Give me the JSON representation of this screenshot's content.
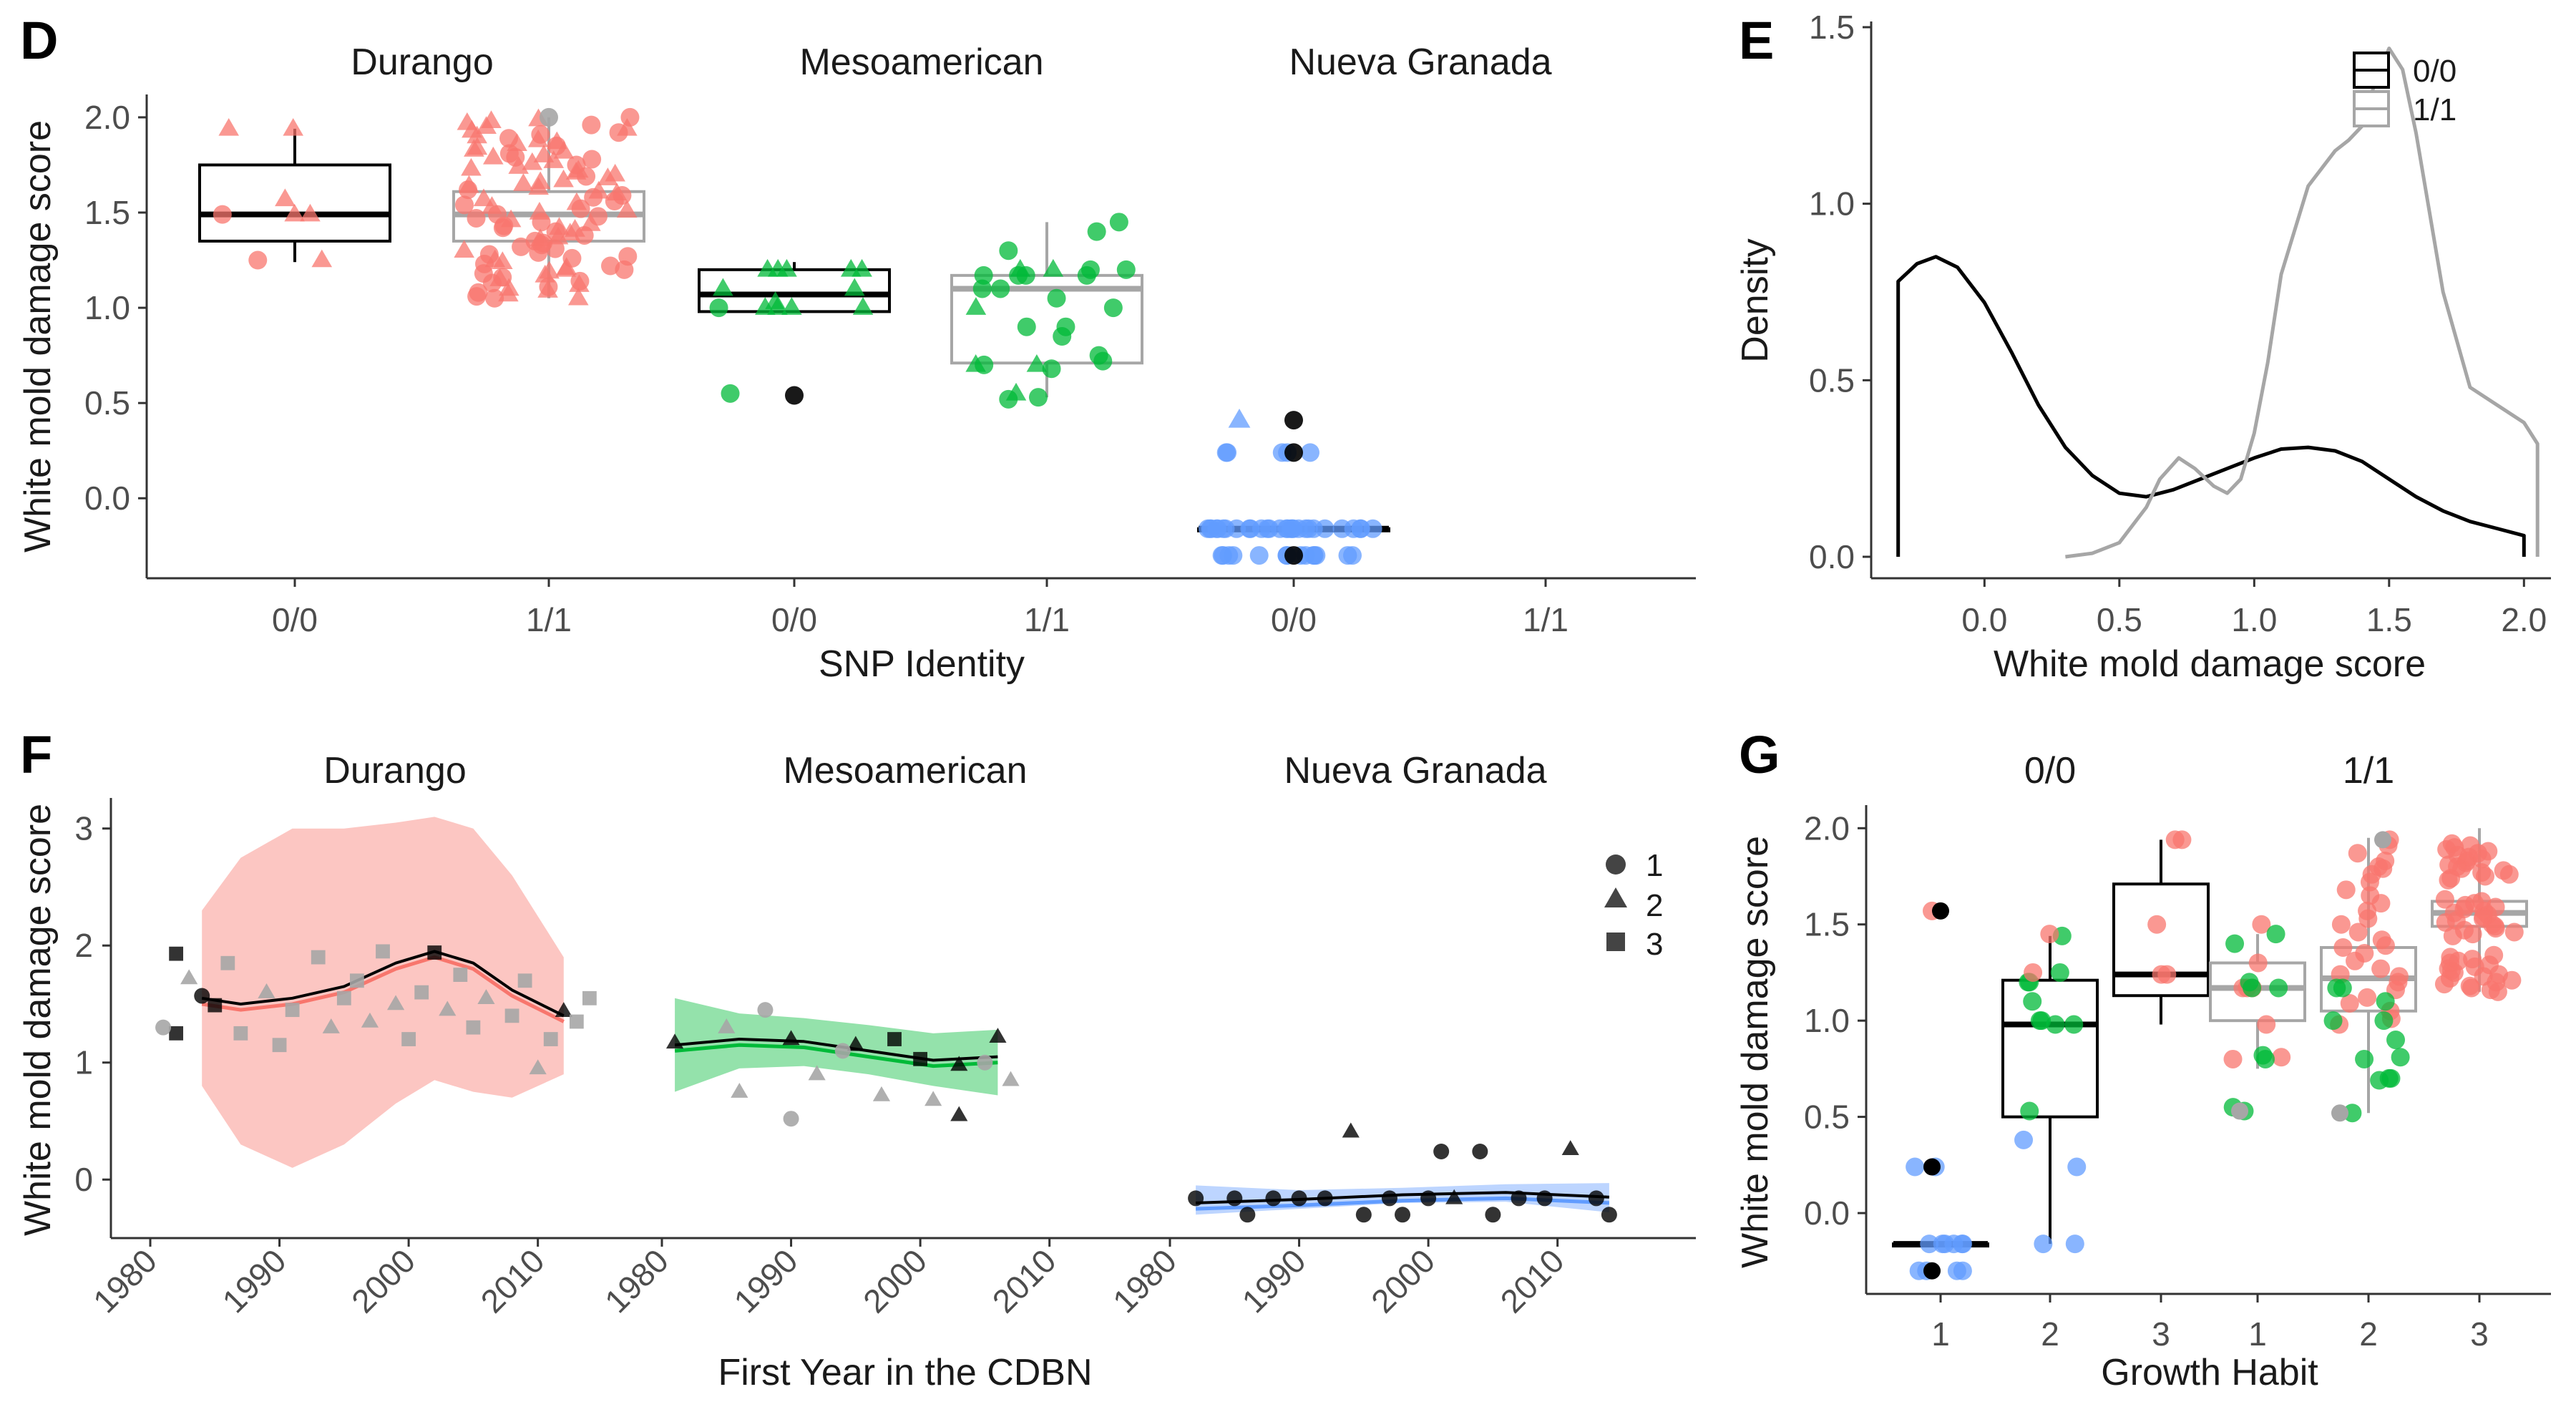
{
  "colors": {
    "Durango": "#F8766D",
    "Mesoamerican": "#00BA38",
    "Nueva Granada": "#619CFF",
    "genotype_00": "#000000",
    "genotype_11": "#A6A6A6"
  },
  "chart_data": [
    {
      "panel": "D",
      "type": "box",
      "xlabel": "SNP Identity",
      "ylabel": "White mold damage score",
      "ylim": [
        -0.42,
        2.12
      ],
      "yticks": [
        "0.0",
        "0.5",
        "1.0",
        "1.5",
        "2.0"
      ],
      "facets": [
        "Durango",
        "Mesoamerican",
        "Nueva Granada"
      ],
      "categories": [
        "0/0",
        "1/1"
      ],
      "boxes": [
        {
          "facet": "Durango",
          "genotype": "0/0",
          "min": 1.24,
          "q1": 1.35,
          "median": 1.49,
          "q3": 1.75,
          "max": 1.94
        },
        {
          "facet": "Durango",
          "genotype": "1/1",
          "min": 1.05,
          "q1": 1.35,
          "median": 1.49,
          "q3": 1.61,
          "max": 2.0
        },
        {
          "facet": "Mesoamerican",
          "genotype": "0/0",
          "min": 0.98,
          "q1": 0.98,
          "median": 1.07,
          "q3": 1.2,
          "max": 1.24
        },
        {
          "facet": "Mesoamerican",
          "genotype": "1/1",
          "min": 0.53,
          "q1": 0.71,
          "median": 1.1,
          "q3": 1.17,
          "max": 1.45
        },
        {
          "facet": "Nueva Granada",
          "genotype": "0/0",
          "min": -0.16,
          "q1": -0.16,
          "median": -0.16,
          "q3": -0.16,
          "max": -0.16
        }
      ]
    },
    {
      "panel": "E",
      "type": "line",
      "xlabel": "White mold damage score",
      "ylabel": "Density",
      "xlim": [
        -0.42,
        2.1
      ],
      "ylim": [
        0,
        1.5
      ],
      "xticks": [
        "0.0",
        "0.5",
        "1.0",
        "1.5",
        "2.0"
      ],
      "yticks": [
        "0.0",
        "0.5",
        "1.0",
        "1.5"
      ],
      "legend": [
        "0/0",
        "1/1"
      ],
      "series": [
        {
          "name": "0/0",
          "x": [
            -0.32,
            -0.32,
            -0.25,
            -0.18,
            -0.1,
            0.0,
            0.1,
            0.2,
            0.3,
            0.4,
            0.5,
            0.6,
            0.7,
            0.8,
            0.9,
            1.0,
            1.1,
            1.2,
            1.3,
            1.4,
            1.5,
            1.6,
            1.7,
            1.8,
            1.9,
            2.0,
            2.0
          ],
          "y": [
            0.0,
            0.78,
            0.83,
            0.85,
            0.82,
            0.72,
            0.58,
            0.43,
            0.31,
            0.23,
            0.18,
            0.17,
            0.19,
            0.22,
            0.25,
            0.28,
            0.305,
            0.31,
            0.3,
            0.27,
            0.22,
            0.17,
            0.13,
            0.1,
            0.08,
            0.06,
            0.0
          ]
        },
        {
          "name": "1/1",
          "x": [
            0.3,
            0.4,
            0.5,
            0.6,
            0.65,
            0.72,
            0.78,
            0.85,
            0.9,
            0.95,
            1.0,
            1.05,
            1.1,
            1.2,
            1.3,
            1.35,
            1.4,
            1.45,
            1.5,
            1.55,
            1.6,
            1.7,
            1.8,
            1.9,
            2.0,
            2.05,
            2.05
          ],
          "y": [
            0.0,
            0.01,
            0.04,
            0.14,
            0.22,
            0.28,
            0.25,
            0.2,
            0.18,
            0.22,
            0.35,
            0.55,
            0.8,
            1.05,
            1.15,
            1.18,
            1.22,
            1.35,
            1.44,
            1.38,
            1.2,
            0.75,
            0.48,
            0.43,
            0.38,
            0.32,
            0.0
          ]
        }
      ]
    },
    {
      "panel": "F",
      "type": "scatter",
      "xlabel": "First Year in the CDBN",
      "ylabel": "White mold damage score",
      "xlim": [
        1978,
        2018
      ],
      "ylim": [
        -0.5,
        3.2
      ],
      "xticks": [
        "1980",
        "1990",
        "2000",
        "2010"
      ],
      "yticks": [
        "0",
        "1",
        "2",
        "3"
      ],
      "facets": [
        "Durango",
        "Mesoamerican",
        "Nueva Granada"
      ],
      "legend": [
        "1",
        "2",
        "3"
      ],
      "smooth": [
        {
          "facet": "Durango",
          "x": [
            1984,
            1987,
            1991,
            1995,
            1999,
            2002,
            2005,
            2008,
            2012
          ],
          "y": [
            1.55,
            1.5,
            1.55,
            1.65,
            1.85,
            1.95,
            1.85,
            1.62,
            1.4
          ],
          "band_upper": [
            2.3,
            2.75,
            3.0,
            3.0,
            3.05,
            3.1,
            3.0,
            2.6,
            1.9
          ],
          "band_lower": [
            0.8,
            0.3,
            0.1,
            0.3,
            0.65,
            0.85,
            0.75,
            0.7,
            0.9
          ]
        },
        {
          "facet": "Mesoamerican",
          "x": [
            1981,
            1986,
            1991,
            1996,
            2001,
            2006
          ],
          "y": [
            1.15,
            1.2,
            1.18,
            1.1,
            1.02,
            1.05
          ],
          "band_upper": [
            1.55,
            1.42,
            1.38,
            1.32,
            1.25,
            1.28
          ],
          "band_lower": [
            0.75,
            0.95,
            0.97,
            0.9,
            0.8,
            0.72
          ]
        },
        {
          "facet": "Nueva Granada",
          "x": [
            1982,
            1990,
            1998,
            2006,
            2014
          ],
          "y": [
            -0.2,
            -0.17,
            -0.13,
            -0.11,
            -0.15
          ],
          "band_upper": [
            -0.05,
            -0.09,
            -0.07,
            -0.04,
            -0.03
          ],
          "band_lower": [
            -0.3,
            -0.25,
            -0.2,
            -0.19,
            -0.28
          ]
        }
      ],
      "points": [
        {
          "facet": "Durango",
          "g": "0/0",
          "x": 1982,
          "y": 1.93,
          "s": 3
        },
        {
          "facet": "Durango",
          "g": "0/0",
          "x": 1982,
          "y": 1.25,
          "s": 3
        },
        {
          "facet": "Durango",
          "g": "0/0",
          "x": 1985,
          "y": 1.49,
          "s": 3
        },
        {
          "facet": "Durango",
          "g": "0/0",
          "x": 1984,
          "y": 1.57,
          "s": 1
        },
        {
          "facet": "Durango",
          "g": "0/0",
          "x": 2002,
          "y": 1.94,
          "s": 3
        },
        {
          "facet": "Durango",
          "g": "0/0",
          "x": 2012,
          "y": 1.44,
          "s": 2
        },
        {
          "facet": "Durango",
          "g": "1/1",
          "x": 1981,
          "y": 1.3,
          "s": 1
        },
        {
          "facet": "Durango",
          "g": "1/1",
          "x": 1983,
          "y": 1.72,
          "s": 2
        },
        {
          "facet": "Durango",
          "g": "1/1",
          "x": 1986,
          "y": 1.85,
          "s": 3
        },
        {
          "facet": "Durango",
          "g": "1/1",
          "x": 1987,
          "y": 1.25,
          "s": 3
        },
        {
          "facet": "Durango",
          "g": "1/1",
          "x": 1989,
          "y": 1.6,
          "s": 2
        },
        {
          "facet": "Durango",
          "g": "1/1",
          "x": 1990,
          "y": 1.15,
          "s": 3
        },
        {
          "facet": "Durango",
          "g": "1/1",
          "x": 1991,
          "y": 1.45,
          "s": 3
        },
        {
          "facet": "Durango",
          "g": "1/1",
          "x": 1993,
          "y": 1.9,
          "s": 3
        },
        {
          "facet": "Durango",
          "g": "1/1",
          "x": 1994,
          "y": 1.3,
          "s": 2
        },
        {
          "facet": "Durango",
          "g": "1/1",
          "x": 1995,
          "y": 1.55,
          "s": 3
        },
        {
          "facet": "Durango",
          "g": "1/1",
          "x": 1996,
          "y": 1.7,
          "s": 3
        },
        {
          "facet": "Durango",
          "g": "1/1",
          "x": 1997,
          "y": 1.35,
          "s": 2
        },
        {
          "facet": "Durango",
          "g": "1/1",
          "x": 1998,
          "y": 1.95,
          "s": 3
        },
        {
          "facet": "Durango",
          "g": "1/1",
          "x": 1999,
          "y": 1.5,
          "s": 2
        },
        {
          "facet": "Durango",
          "g": "1/1",
          "x": 2000,
          "y": 1.2,
          "s": 3
        },
        {
          "facet": "Durango",
          "g": "1/1",
          "x": 2001,
          "y": 1.6,
          "s": 3
        },
        {
          "facet": "Durango",
          "g": "1/1",
          "x": 2003,
          "y": 1.45,
          "s": 2
        },
        {
          "facet": "Durango",
          "g": "1/1",
          "x": 2004,
          "y": 1.75,
          "s": 3
        },
        {
          "facet": "Durango",
          "g": "1/1",
          "x": 2005,
          "y": 1.3,
          "s": 3
        },
        {
          "facet": "Durango",
          "g": "1/1",
          "x": 2006,
          "y": 1.55,
          "s": 2
        },
        {
          "facet": "Durango",
          "g": "1/1",
          "x": 2008,
          "y": 1.4,
          "s": 3
        },
        {
          "facet": "Durango",
          "g": "1/1",
          "x": 2009,
          "y": 1.7,
          "s": 3
        },
        {
          "facet": "Durango",
          "g": "1/1",
          "x": 2011,
          "y": 1.2,
          "s": 3
        },
        {
          "facet": "Durango",
          "g": "1/1",
          "x": 2013,
          "y": 1.35,
          "s": 3
        },
        {
          "facet": "Durango",
          "g": "1/1",
          "x": 2014,
          "y": 1.55,
          "s": 3
        },
        {
          "facet": "Durango",
          "g": "1/1",
          "x": 2010,
          "y": 0.95,
          "s": 2
        },
        {
          "facet": "Mesoamerican",
          "g": "0/0",
          "x": 1981,
          "y": 1.17,
          "s": 2
        },
        {
          "facet": "Mesoamerican",
          "g": "0/0",
          "x": 1990,
          "y": 1.2,
          "s": 2
        },
        {
          "facet": "Mesoamerican",
          "g": "0/0",
          "x": 1995,
          "y": 1.15,
          "s": 2
        },
        {
          "facet": "Mesoamerican",
          "g": "0/0",
          "x": 1998,
          "y": 1.2,
          "s": 3
        },
        {
          "facet": "Mesoamerican",
          "g": "0/0",
          "x": 2000,
          "y": 1.03,
          "s": 3
        },
        {
          "facet": "Mesoamerican",
          "g": "0/0",
          "x": 2003,
          "y": 0.98,
          "s": 2
        },
        {
          "facet": "Mesoamerican",
          "g": "0/0",
          "x": 2006,
          "y": 1.22,
          "s": 2
        },
        {
          "facet": "Mesoamerican",
          "g": "0/0",
          "x": 2003,
          "y": 0.55,
          "s": 2
        },
        {
          "facet": "Mesoamerican",
          "g": "1/1",
          "x": 1985,
          "y": 1.3,
          "s": 2
        },
        {
          "facet": "Mesoamerican",
          "g": "1/1",
          "x": 1988,
          "y": 1.45,
          "s": 1
        },
        {
          "facet": "Mesoamerican",
          "g": "1/1",
          "x": 1986,
          "y": 0.75,
          "s": 2
        },
        {
          "facet": "Mesoamerican",
          "g": "1/1",
          "x": 1990,
          "y": 0.52,
          "s": 1
        },
        {
          "facet": "Mesoamerican",
          "g": "1/1",
          "x": 1992,
          "y": 0.9,
          "s": 2
        },
        {
          "facet": "Mesoamerican",
          "g": "1/1",
          "x": 1994,
          "y": 1.1,
          "s": 1
        },
        {
          "facet": "Mesoamerican",
          "g": "1/1",
          "x": 1997,
          "y": 0.72,
          "s": 2
        },
        {
          "facet": "Mesoamerican",
          "g": "1/1",
          "x": 2001,
          "y": 0.68,
          "s": 2
        },
        {
          "facet": "Mesoamerican",
          "g": "1/1",
          "x": 2005,
          "y": 1.0,
          "s": 1
        },
        {
          "facet": "Mesoamerican",
          "g": "1/1",
          "x": 2007,
          "y": 0.85,
          "s": 2
        },
        {
          "facet": "Nueva Granada",
          "g": "0/0",
          "x": 1982,
          "y": -0.16,
          "s": 1
        },
        {
          "facet": "Nueva Granada",
          "g": "0/0",
          "x": 1985,
          "y": -0.16,
          "s": 1
        },
        {
          "facet": "Nueva Granada",
          "g": "0/0",
          "x": 1986,
          "y": -0.3,
          "s": 1
        },
        {
          "facet": "Nueva Granada",
          "g": "0/0",
          "x": 1988,
          "y": -0.16,
          "s": 1
        },
        {
          "facet": "Nueva Granada",
          "g": "0/0",
          "x": 1990,
          "y": -0.16,
          "s": 1
        },
        {
          "facet": "Nueva Granada",
          "g": "0/0",
          "x": 1992,
          "y": -0.16,
          "s": 1
        },
        {
          "facet": "Nueva Granada",
          "g": "0/0",
          "x": 1994,
          "y": 0.41,
          "s": 2
        },
        {
          "facet": "Nueva Granada",
          "g": "0/0",
          "x": 1995,
          "y": -0.3,
          "s": 1
        },
        {
          "facet": "Nueva Granada",
          "g": "0/0",
          "x": 1997,
          "y": -0.16,
          "s": 1
        },
        {
          "facet": "Nueva Granada",
          "g": "0/0",
          "x": 1998,
          "y": -0.3,
          "s": 1
        },
        {
          "facet": "Nueva Granada",
          "g": "0/0",
          "x": 2000,
          "y": -0.16,
          "s": 1
        },
        {
          "facet": "Nueva Granada",
          "g": "0/0",
          "x": 2001,
          "y": 0.24,
          "s": 1
        },
        {
          "facet": "Nueva Granada",
          "g": "0/0",
          "x": 2002,
          "y": -0.16,
          "s": 2
        },
        {
          "facet": "Nueva Granada",
          "g": "0/0",
          "x": 2004,
          "y": 0.24,
          "s": 1
        },
        {
          "facet": "Nueva Granada",
          "g": "0/0",
          "x": 2005,
          "y": -0.3,
          "s": 1
        },
        {
          "facet": "Nueva Granada",
          "g": "0/0",
          "x": 2007,
          "y": -0.16,
          "s": 1
        },
        {
          "facet": "Nueva Granada",
          "g": "0/0",
          "x": 2009,
          "y": -0.16,
          "s": 1
        },
        {
          "facet": "Nueva Granada",
          "g": "0/0",
          "x": 2011,
          "y": 0.26,
          "s": 2
        },
        {
          "facet": "Nueva Granada",
          "g": "0/0",
          "x": 2013,
          "y": -0.16,
          "s": 1
        },
        {
          "facet": "Nueva Granada",
          "g": "0/0",
          "x": 2014,
          "y": -0.3,
          "s": 1
        }
      ]
    },
    {
      "panel": "G",
      "type": "box",
      "xlabel": "Growth Habit",
      "ylabel": "White mold damage score",
      "ylim": [
        -0.42,
        2.12
      ],
      "yticks": [
        "0.0",
        "0.5",
        "1.0",
        "1.5",
        "2.0"
      ],
      "facets": [
        "0/0",
        "1/1"
      ],
      "categories": [
        "1",
        "2",
        "3"
      ],
      "boxes": [
        {
          "facet": "0/0",
          "habit": "1",
          "min": -0.16,
          "q1": -0.16,
          "median": -0.16,
          "q3": -0.16,
          "max": -0.16
        },
        {
          "facet": "0/0",
          "habit": "2",
          "min": -0.16,
          "q1": 0.5,
          "median": 0.98,
          "q3": 1.21,
          "max": 1.44
        },
        {
          "facet": "0/0",
          "habit": "3",
          "min": 0.98,
          "q1": 1.13,
          "median": 1.24,
          "q3": 1.71,
          "max": 1.94
        },
        {
          "facet": "1/1",
          "habit": "1",
          "min": 0.75,
          "q1": 1.0,
          "median": 1.17,
          "q3": 1.3,
          "max": 1.45
        },
        {
          "facet": "1/1",
          "habit": "2",
          "min": 0.52,
          "q1": 1.05,
          "median": 1.22,
          "q3": 1.38,
          "max": 1.95
        },
        {
          "facet": "1/1",
          "habit": "3",
          "min": 1.15,
          "q1": 1.49,
          "median": 1.56,
          "q3": 1.62,
          "max": 2.0
        }
      ]
    }
  ],
  "panels": {
    "D": {
      "label": "D",
      "title_durango": "Durango",
      "title_meso": "Mesoamerican",
      "title_ng": "Nueva Granada",
      "xlabel": "SNP Identity",
      "ylabel": "White mold damage score"
    },
    "E": {
      "label": "E",
      "xlabel": "White mold damage score",
      "ylabel": "Density",
      "legend_00": "0/0",
      "legend_11": "1/1"
    },
    "F": {
      "label": "F",
      "title_durango": "Durango",
      "title_meso": "Mesoamerican",
      "title_ng": "Nueva Granada",
      "xlabel": "First Year in the CDBN",
      "ylabel": "White mold damage score",
      "legend_1": "1",
      "legend_2": "2",
      "legend_3": "3"
    },
    "G": {
      "label": "G",
      "title_00": "0/0",
      "title_11": "1/1",
      "xlabel": "Growth Habit",
      "ylabel": "White mold damage score"
    }
  }
}
